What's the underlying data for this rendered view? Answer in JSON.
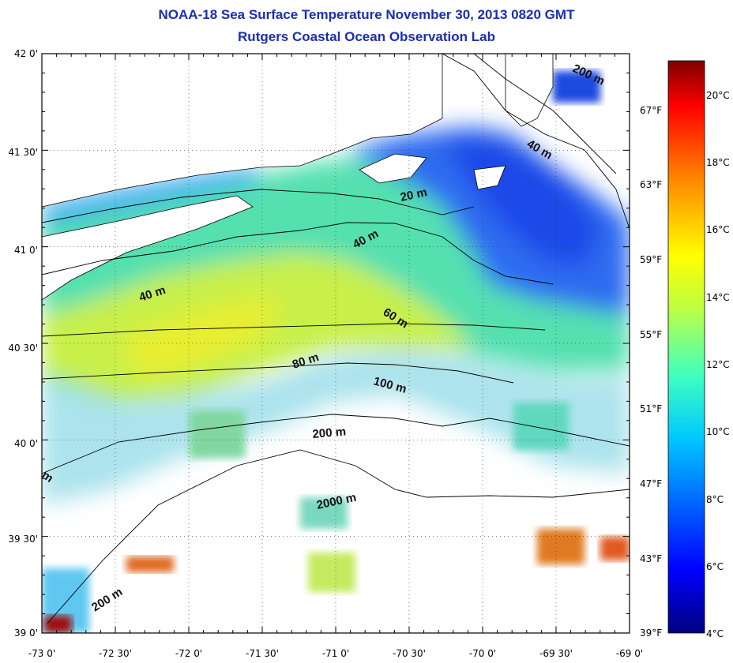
{
  "title": {
    "line1": "NOAA-18 Sea Surface Temperature November 30, 2013 0820 GMT",
    "line2": "Rutgers Coastal Ocean Observation Lab"
  },
  "axes": {
    "lat_labels": [
      "42 0'",
      "41 30'",
      "41 0'",
      "40 30'",
      "40 0'",
      "39 30'",
      "39 0'"
    ],
    "lon_labels": [
      "-73 0'",
      "-72 30'",
      "-72 0'",
      "-71 30'",
      "-71 0'",
      "-70 30'",
      "-70 0'",
      "-69 30'",
      "-69 0'"
    ],
    "lat_range": [
      39.0,
      42.0
    ],
    "lon_range": [
      -73.0,
      -69.0
    ]
  },
  "colorbar": {
    "range_c": [
      4,
      21.5
    ],
    "celsius_labels": [
      "20°C",
      "18°C",
      "16°C",
      "14°C",
      "12°C",
      "10°C",
      "8°C",
      "6°C",
      "4°C"
    ],
    "fahrenheit_labels": [
      "67°F",
      "63°F",
      "59°F",
      "55°F",
      "51°F",
      "47°F",
      "43°F",
      "39°F"
    ],
    "colors": [
      "#00007f",
      "#0000ff",
      "#0080ff",
      "#00ffff",
      "#80ff80",
      "#ffff00",
      "#ff8000",
      "#ff0000",
      "#7f0000"
    ]
  },
  "contour_labels": [
    "20 m",
    "40 m",
    "40 m",
    "60 m",
    "80 m",
    "100 m",
    "200 m",
    "2000 m",
    "200 m",
    "200 m",
    "40 m",
    "m"
  ],
  "colors": {
    "title": "#1a2fb0",
    "land": "#ffffff",
    "coast": "#000000"
  }
}
